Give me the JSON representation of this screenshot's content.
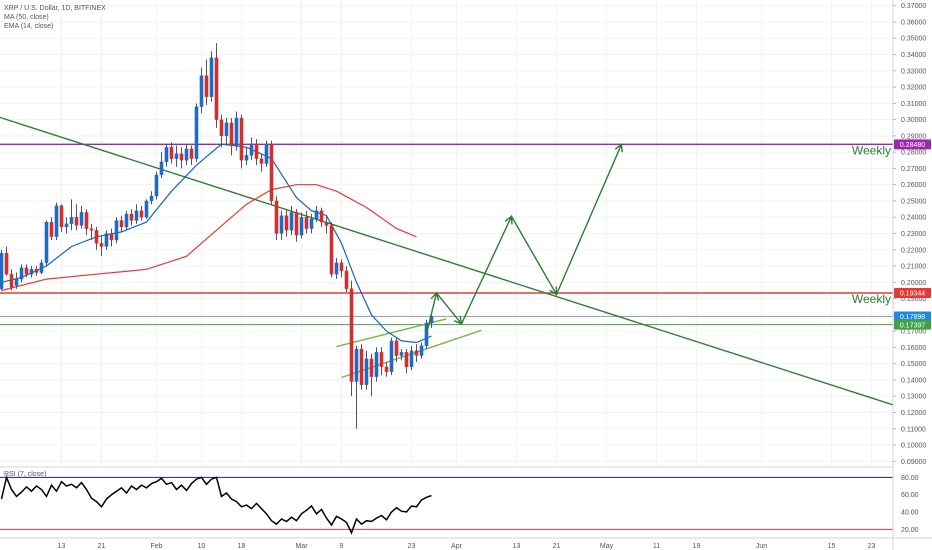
{
  "legend": {
    "symbol": "XRP / U.S. Dollar, 1D, BITFINEX",
    "ma": "MA (50, close)",
    "ema": "EMA (14, close)",
    "rsi": "RSI (7, close)"
  },
  "chart_data": {
    "type": "candlestick",
    "symbol": "XRP / U.S. Dollar",
    "interval": "1D",
    "exchange": "BITFINEX",
    "y_ticks": [
      "0.37000",
      "0.36000",
      "0.35000",
      "0.34000",
      "0.33000",
      "0.32000",
      "0.31000",
      "0.30000",
      "0.29000",
      "0.28000",
      "0.27000",
      "0.26000",
      "0.25000",
      "0.24000",
      "0.23000",
      "0.22000",
      "0.21000",
      "0.20000",
      "0.19000",
      "0.18000",
      "0.17000",
      "0.16000",
      "0.15000",
      "0.14000",
      "0.13000",
      "0.12000",
      "0.11000",
      "0.10000",
      "0.09000"
    ],
    "ylim": [
      0.0865,
      0.3735
    ],
    "x_ticks": [
      {
        "label": "13",
        "day": 13
      },
      {
        "label": "21",
        "day": 21
      },
      {
        "label": "Feb",
        "day": 32
      },
      {
        "label": "10",
        "day": 41
      },
      {
        "label": "18",
        "day": 49
      },
      {
        "label": "Mar",
        "day": 61
      },
      {
        "label": "9",
        "day": 69
      },
      {
        "label": "23",
        "day": 83
      },
      {
        "label": "Apr",
        "day": 92
      },
      {
        "label": "13",
        "day": 104
      },
      {
        "label": "21",
        "day": 112
      },
      {
        "label": "May",
        "day": 122
      },
      {
        "label": "11",
        "day": 132
      },
      {
        "label": "19",
        "day": 140
      },
      {
        "label": "Jun",
        "day": 153
      },
      {
        "label": "15",
        "day": 167
      },
      {
        "label": "23",
        "day": 175
      }
    ],
    "x_axis_note": "day = days since Jan 1 of the chart year",
    "price_labels": [
      {
        "text": "0.28480",
        "value": 0.2848,
        "color": "#9c27b0"
      },
      {
        "text": "0.19344",
        "value": 0.19344,
        "color": "#e53935"
      },
      {
        "text": "0.17898",
        "value": 0.17898,
        "color": "#1e88e5"
      },
      {
        "text": "23:36:43",
        "value": 0.1743,
        "color": "#1e88e5"
      },
      {
        "text": "0.17397",
        "value": 0.17397,
        "color": "#43a047"
      }
    ],
    "horizontal_levels": [
      {
        "value": 0.2848,
        "color": "#9c27b0",
        "label": "Weekly"
      },
      {
        "value": 0.19344,
        "color": "#e53935",
        "label": "Weekly"
      },
      {
        "value": 0.17397,
        "color": "#43a047",
        "label": ""
      },
      {
        "value": 0.17898,
        "color": "#9aa5b1",
        "label": ""
      }
    ],
    "trendlines": [
      {
        "color": "#2e7d32",
        "points": [
          [
            -1,
            0.303
          ],
          [
            180,
            0.124
          ]
        ]
      },
      {
        "color": "#7cb342",
        "points": [
          [
            68,
            0.1605
          ],
          [
            90,
            0.1775
          ]
        ]
      },
      {
        "color": "#7cb342",
        "points": [
          [
            69,
            0.1415
          ],
          [
            97,
            0.1705
          ]
        ]
      }
    ],
    "projection_path": {
      "color": "#2e7d32",
      "points": [
        [
          86,
          0.1683
        ],
        [
          88,
          0.1935
        ],
        [
          93,
          0.1745
        ],
        [
          103,
          0.2405
        ],
        [
          112,
          0.1925
        ],
        [
          125,
          0.2848
        ]
      ]
    },
    "candles": [
      [
        1,
        0.196,
        0.218,
        0.195,
        0.22
      ],
      [
        2,
        0.218,
        0.205,
        0.204,
        0.222
      ],
      [
        3,
        0.205,
        0.197,
        0.195,
        0.208
      ],
      [
        4,
        0.198,
        0.202,
        0.196,
        0.206
      ],
      [
        5,
        0.202,
        0.209,
        0.2,
        0.211
      ],
      [
        6,
        0.209,
        0.205,
        0.203,
        0.211
      ],
      [
        7,
        0.205,
        0.208,
        0.203,
        0.21
      ],
      [
        8,
        0.208,
        0.206,
        0.204,
        0.21
      ],
      [
        9,
        0.206,
        0.212,
        0.205,
        0.214
      ],
      [
        10,
        0.212,
        0.237,
        0.21,
        0.238
      ],
      [
        11,
        0.237,
        0.228,
        0.226,
        0.24
      ],
      [
        12,
        0.228,
        0.247,
        0.226,
        0.249
      ],
      [
        13,
        0.247,
        0.234,
        0.231,
        0.248
      ],
      [
        14,
        0.234,
        0.236,
        0.23,
        0.24
      ],
      [
        15,
        0.236,
        0.24,
        0.232,
        0.251
      ],
      [
        16,
        0.24,
        0.235,
        0.232,
        0.248
      ],
      [
        17,
        0.235,
        0.243,
        0.233,
        0.247
      ],
      [
        18,
        0.243,
        0.233,
        0.229,
        0.245
      ],
      [
        19,
        0.233,
        0.232,
        0.226,
        0.236
      ],
      [
        20,
        0.232,
        0.224,
        0.22,
        0.234
      ],
      [
        21,
        0.224,
        0.222,
        0.216,
        0.228
      ],
      [
        22,
        0.222,
        0.23,
        0.22,
        0.232
      ],
      [
        23,
        0.23,
        0.226,
        0.222,
        0.233
      ],
      [
        24,
        0.226,
        0.238,
        0.224,
        0.24
      ],
      [
        25,
        0.238,
        0.234,
        0.231,
        0.241
      ],
      [
        26,
        0.234,
        0.242,
        0.232,
        0.244
      ],
      [
        27,
        0.242,
        0.238,
        0.235,
        0.245
      ],
      [
        28,
        0.238,
        0.244,
        0.236,
        0.248
      ],
      [
        29,
        0.244,
        0.24,
        0.238,
        0.247
      ],
      [
        30,
        0.24,
        0.25,
        0.239,
        0.251
      ],
      [
        31,
        0.25,
        0.253,
        0.248,
        0.256
      ],
      [
        32,
        0.253,
        0.266,
        0.251,
        0.268
      ],
      [
        33,
        0.266,
        0.274,
        0.264,
        0.28
      ],
      [
        34,
        0.274,
        0.283,
        0.271,
        0.285
      ],
      [
        35,
        0.283,
        0.276,
        0.273,
        0.286
      ],
      [
        36,
        0.276,
        0.279,
        0.271,
        0.284
      ],
      [
        37,
        0.279,
        0.275,
        0.27,
        0.283
      ],
      [
        38,
        0.275,
        0.282,
        0.272,
        0.285
      ],
      [
        39,
        0.282,
        0.276,
        0.272,
        0.284
      ],
      [
        40,
        0.276,
        0.308,
        0.274,
        0.31
      ],
      [
        41,
        0.308,
        0.327,
        0.304,
        0.332
      ],
      [
        42,
        0.327,
        0.314,
        0.309,
        0.337
      ],
      [
        43,
        0.314,
        0.338,
        0.311,
        0.342
      ],
      [
        44,
        0.338,
        0.3,
        0.295,
        0.347
      ],
      [
        45,
        0.3,
        0.29,
        0.283,
        0.303
      ],
      [
        46,
        0.29,
        0.298,
        0.284,
        0.301
      ],
      [
        47,
        0.298,
        0.284,
        0.278,
        0.301
      ],
      [
        48,
        0.284,
        0.301,
        0.281,
        0.305
      ],
      [
        49,
        0.301,
        0.275,
        0.27,
        0.303
      ],
      [
        50,
        0.275,
        0.278,
        0.272,
        0.283
      ],
      [
        51,
        0.278,
        0.285,
        0.275,
        0.289
      ],
      [
        52,
        0.285,
        0.276,
        0.272,
        0.288
      ],
      [
        53,
        0.276,
        0.273,
        0.268,
        0.279
      ],
      [
        54,
        0.273,
        0.285,
        0.271,
        0.287
      ],
      [
        55,
        0.285,
        0.25,
        0.248,
        0.287
      ],
      [
        56,
        0.25,
        0.23,
        0.226,
        0.253
      ],
      [
        57,
        0.23,
        0.241,
        0.226,
        0.244
      ],
      [
        58,
        0.241,
        0.232,
        0.228,
        0.245
      ],
      [
        59,
        0.232,
        0.243,
        0.229,
        0.247
      ],
      [
        60,
        0.243,
        0.229,
        0.225,
        0.245
      ],
      [
        61,
        0.229,
        0.24,
        0.227,
        0.243
      ],
      [
        62,
        0.24,
        0.233,
        0.23,
        0.244
      ],
      [
        63,
        0.233,
        0.239,
        0.23,
        0.242
      ],
      [
        64,
        0.239,
        0.244,
        0.237,
        0.247
      ],
      [
        65,
        0.244,
        0.237,
        0.234,
        0.246
      ],
      [
        66,
        0.237,
        0.235,
        0.23,
        0.241
      ],
      [
        67,
        0.235,
        0.205,
        0.203,
        0.237
      ],
      [
        68,
        0.205,
        0.212,
        0.202,
        0.215
      ],
      [
        69,
        0.212,
        0.207,
        0.203,
        0.214
      ],
      [
        70,
        0.207,
        0.196,
        0.194,
        0.21
      ],
      [
        71,
        0.196,
        0.139,
        0.13,
        0.201
      ],
      [
        72,
        0.139,
        0.159,
        0.11,
        0.161
      ],
      [
        73,
        0.159,
        0.137,
        0.134,
        0.162
      ],
      [
        74,
        0.137,
        0.153,
        0.134,
        0.158
      ],
      [
        75,
        0.153,
        0.142,
        0.13,
        0.156
      ],
      [
        76,
        0.142,
        0.157,
        0.139,
        0.16
      ],
      [
        77,
        0.157,
        0.148,
        0.143,
        0.16
      ],
      [
        78,
        0.148,
        0.145,
        0.142,
        0.151
      ],
      [
        79,
        0.145,
        0.164,
        0.143,
        0.166
      ],
      [
        80,
        0.164,
        0.155,
        0.151,
        0.166
      ],
      [
        81,
        0.155,
        0.157,
        0.152,
        0.159
      ],
      [
        82,
        0.157,
        0.148,
        0.144,
        0.159
      ],
      [
        83,
        0.148,
        0.158,
        0.146,
        0.161
      ],
      [
        84,
        0.158,
        0.155,
        0.151,
        0.162
      ],
      [
        85,
        0.155,
        0.161,
        0.153,
        0.163
      ],
      [
        86,
        0.161,
        0.175,
        0.159,
        0.177
      ],
      [
        87,
        0.175,
        0.179,
        0.172,
        0.181
      ]
    ],
    "moving_averages": [
      {
        "name": "EMA (14, close)",
        "color": "#1565c0",
        "points": [
          [
            1,
            0.2
          ],
          [
            5,
            0.203
          ],
          [
            10,
            0.21
          ],
          [
            15,
            0.222
          ],
          [
            20,
            0.228
          ],
          [
            25,
            0.231
          ],
          [
            30,
            0.237
          ],
          [
            35,
            0.256
          ],
          [
            40,
            0.272
          ],
          [
            45,
            0.285
          ],
          [
            50,
            0.283
          ],
          [
            55,
            0.276
          ],
          [
            60,
            0.252
          ],
          [
            63,
            0.244
          ],
          [
            66,
            0.241
          ],
          [
            69,
            0.224
          ],
          [
            72,
            0.2
          ],
          [
            75,
            0.18
          ],
          [
            78,
            0.17
          ],
          [
            81,
            0.164
          ],
          [
            84,
            0.163
          ],
          [
            87,
            0.167
          ]
        ]
      },
      {
        "name": "MA (50, close)",
        "color": "#e53935",
        "points": [
          [
            1,
            0.195
          ],
          [
            10,
            0.202
          ],
          [
            20,
            0.205
          ],
          [
            30,
            0.208
          ],
          [
            38,
            0.216
          ],
          [
            44,
            0.232
          ],
          [
            50,
            0.248
          ],
          [
            55,
            0.257
          ],
          [
            60,
            0.26
          ],
          [
            64,
            0.26
          ],
          [
            68,
            0.256
          ],
          [
            74,
            0.246
          ],
          [
            80,
            0.233
          ],
          [
            84,
            0.228
          ]
        ]
      }
    ],
    "rsi": {
      "ticks": [
        "80.00",
        "60.00",
        "40.00",
        "20.00"
      ],
      "ylim": [
        10,
        92
      ],
      "levels": [
        {
          "value": 80,
          "color": "#1a237e"
        },
        {
          "value": 20,
          "color": "#e53935"
        }
      ],
      "color": "#000000",
      "values": [
        [
          1,
          55
        ],
        [
          2,
          80
        ],
        [
          3,
          66
        ],
        [
          4,
          58
        ],
        [
          5,
          63
        ],
        [
          6,
          69
        ],
        [
          7,
          64
        ],
        [
          8,
          70
        ],
        [
          9,
          66
        ],
        [
          10,
          58
        ],
        [
          11,
          71
        ],
        [
          12,
          64
        ],
        [
          13,
          75
        ],
        [
          14,
          70
        ],
        [
          15,
          72
        ],
        [
          16,
          68
        ],
        [
          17,
          74
        ],
        [
          18,
          66
        ],
        [
          19,
          56
        ],
        [
          20,
          52
        ],
        [
          21,
          46
        ],
        [
          22,
          55
        ],
        [
          23,
          60
        ],
        [
          24,
          64
        ],
        [
          25,
          68
        ],
        [
          26,
          62
        ],
        [
          27,
          70
        ],
        [
          28,
          66
        ],
        [
          29,
          71
        ],
        [
          30,
          68
        ],
        [
          31,
          73
        ],
        [
          32,
          75
        ],
        [
          33,
          79
        ],
        [
          34,
          72
        ],
        [
          35,
          74
        ],
        [
          36,
          66
        ],
        [
          37,
          71
        ],
        [
          38,
          65
        ],
        [
          39,
          73
        ],
        [
          40,
          78
        ],
        [
          41,
          80
        ],
        [
          42,
          72
        ],
        [
          43,
          78
        ],
        [
          44,
          80
        ],
        [
          45,
          58
        ],
        [
          46,
          62
        ],
        [
          47,
          55
        ],
        [
          48,
          52
        ],
        [
          49,
          46
        ],
        [
          50,
          48
        ],
        [
          51,
          44
        ],
        [
          52,
          50
        ],
        [
          53,
          44
        ],
        [
          54,
          38
        ],
        [
          55,
          30
        ],
        [
          56,
          26
        ],
        [
          57,
          32
        ],
        [
          58,
          29
        ],
        [
          59,
          34
        ],
        [
          60,
          30
        ],
        [
          61,
          38
        ],
        [
          62,
          42
        ],
        [
          63,
          47
        ],
        [
          64,
          38
        ],
        [
          65,
          43
        ],
        [
          66,
          33
        ],
        [
          67,
          25
        ],
        [
          68,
          35
        ],
        [
          69,
          32
        ],
        [
          70,
          28
        ],
        [
          71,
          16
        ],
        [
          72,
          32
        ],
        [
          73,
          26
        ],
        [
          74,
          30
        ],
        [
          75,
          29
        ],
        [
          76,
          33
        ],
        [
          77,
          36
        ],
        [
          78,
          31
        ],
        [
          79,
          40
        ],
        [
          80,
          45
        ],
        [
          81,
          41
        ],
        [
          82,
          40
        ],
        [
          83,
          47
        ],
        [
          84,
          46
        ],
        [
          85,
          54
        ],
        [
          86,
          57
        ],
        [
          87,
          59
        ]
      ]
    }
  }
}
